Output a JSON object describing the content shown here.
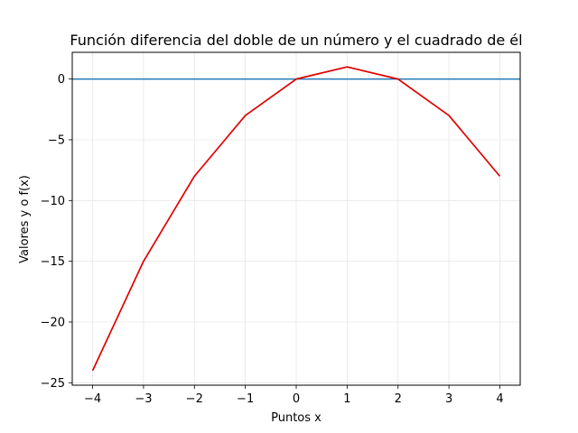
{
  "chart_data": {
    "type": "line",
    "title": "Función diferencia del doble de un número y el cuadrado de él",
    "xlabel": "Puntos x",
    "ylabel": "Valores y o f(x)",
    "xlim": [
      -4.4,
      4.4
    ],
    "ylim": [
      -25.2,
      2.2
    ],
    "x_ticks": [
      -4,
      -3,
      -2,
      -1,
      0,
      1,
      2,
      3,
      4
    ],
    "x_tick_labels": [
      "−4",
      "−3",
      "−2",
      "−1",
      "0",
      "1",
      "2",
      "3",
      "4"
    ],
    "y_ticks": [
      0,
      -5,
      -10,
      -15,
      -20,
      -25
    ],
    "y_tick_labels": [
      "0",
      "−5",
      "−10",
      "−15",
      "−20",
      "−25"
    ],
    "grid": true,
    "series": [
      {
        "x": [
          -4,
          -3,
          -2,
          -1,
          0,
          1,
          2,
          3,
          4
        ],
        "y": [
          -24,
          -15,
          -8,
          -3,
          0,
          1,
          0,
          -3,
          -8
        ],
        "color": "#e00000"
      }
    ],
    "horizontal_lines": [
      {
        "y": 0,
        "color": "#1f77b4"
      }
    ]
  }
}
